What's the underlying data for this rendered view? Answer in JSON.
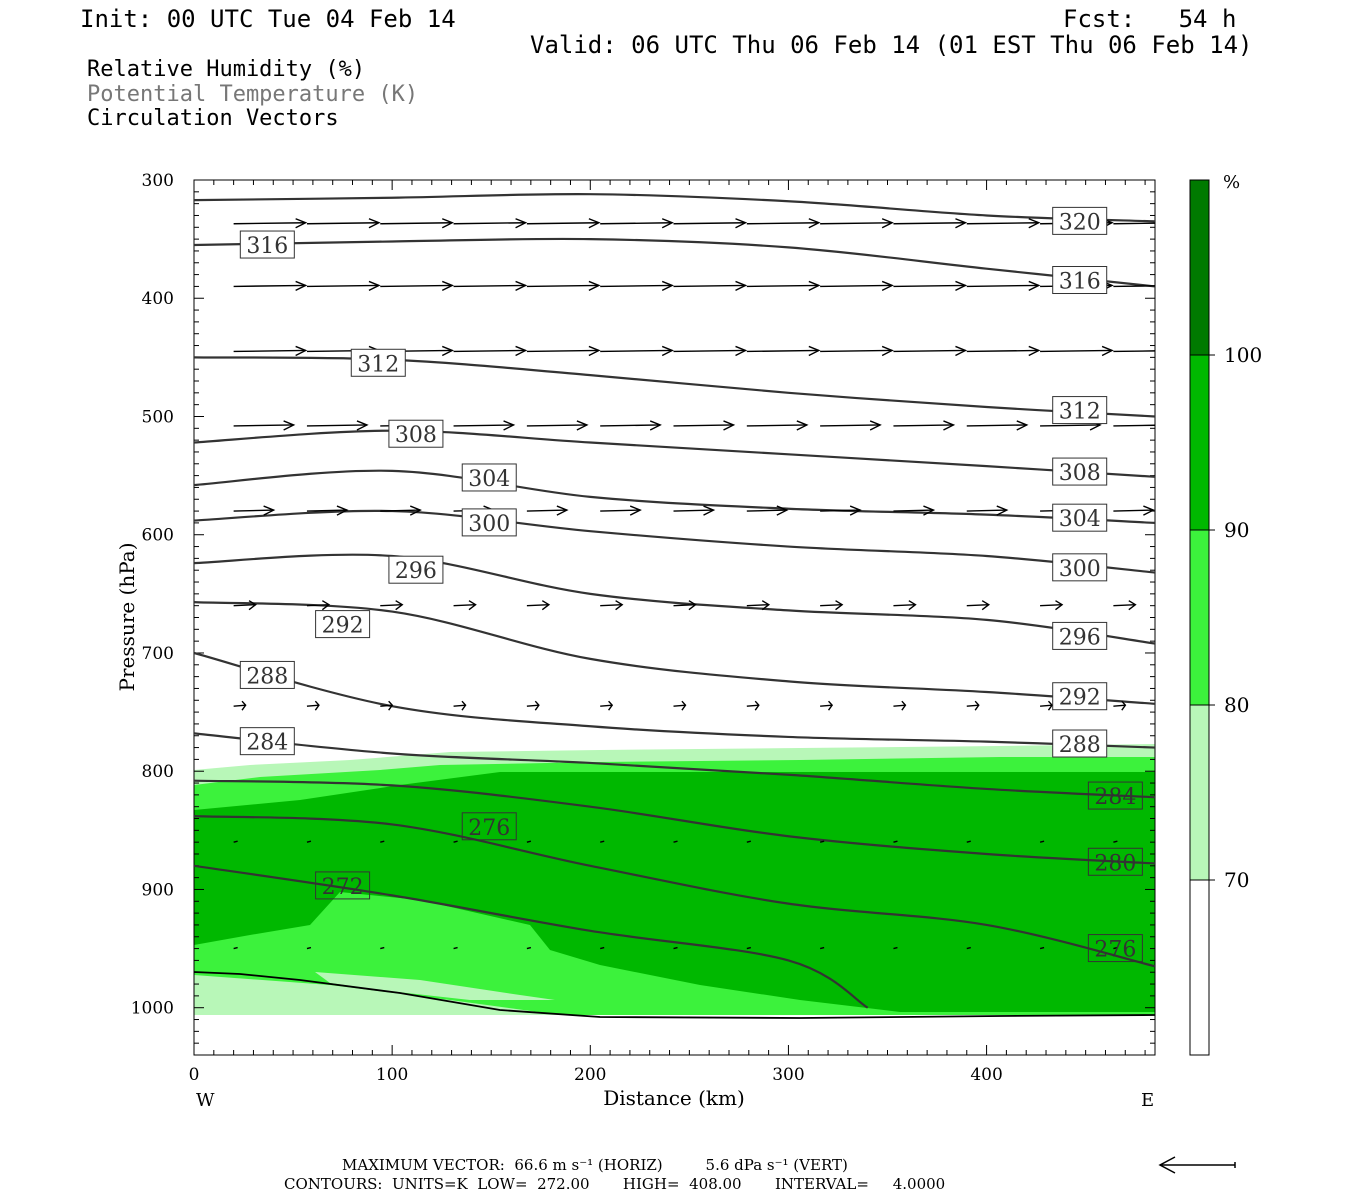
{
  "header": {
    "init": "Init: 00 UTC Tue 04 Feb 14",
    "fcst": "Fcst:   54 h",
    "valid": "Valid: 06 UTC Thu 06 Feb 14 (01 EST Thu 06 Feb 14)"
  },
  "fields": {
    "rh": "Relative Humidity (%)",
    "theta": "Potential Temperature (K)",
    "vectors": "Circulation Vectors"
  },
  "footer": {
    "max_vector": "MAXIMUM VECTOR:  66.6 m s⁻¹ (HORIZ)         5.6 dPa s⁻¹ (VERT)",
    "contours": "CONTOURS:  UNITS=K  LOW=  272.00       HIGH=  408.00       INTERVAL=     4.0000"
  },
  "colors": {
    "rh_70_80": "#b8f7b8",
    "rh_80_90": "#3cf23c",
    "rh_90_100": "#00b800",
    "rh_100": "#007a00",
    "contour": "#333333"
  },
  "chart_data": {
    "type": "cross-section",
    "xlabel": "Distance (km)",
    "ylabel": "Pressure (hPa)",
    "xlim": [
      0,
      485
    ],
    "ylim": [
      1040,
      300
    ],
    "x_ticks": [
      0,
      100,
      200,
      300,
      400
    ],
    "y_ticks": [
      300,
      400,
      500,
      600,
      700,
      800,
      900,
      1000
    ],
    "x_end_labels": {
      "left": "W",
      "right": "E"
    },
    "colorbar": {
      "unit": "%",
      "levels": [
        70,
        80,
        90,
        100
      ]
    },
    "theta_contours": [
      {
        "level": 320,
        "label": "320",
        "x": [
          0,
          100,
          200,
          300,
          400,
          485
        ],
        "p": [
          317,
          315,
          312,
          318,
          330,
          335
        ]
      },
      {
        "level": 316,
        "label": "316",
        "x": [
          0,
          100,
          200,
          300,
          400,
          485
        ],
        "p": [
          355,
          352,
          350,
          357,
          375,
          390
        ]
      },
      {
        "level": 312,
        "label": "312",
        "x": [
          0,
          100,
          200,
          300,
          400,
          485
        ],
        "p": [
          450,
          452,
          465,
          480,
          492,
          500
        ]
      },
      {
        "level": 308,
        "label": "308",
        "x": [
          0,
          100,
          200,
          300,
          400,
          485
        ],
        "p": [
          522,
          512,
          522,
          532,
          542,
          551
        ]
      },
      {
        "level": 304,
        "label": "304",
        "x": [
          0,
          100,
          200,
          300,
          400,
          485
        ],
        "p": [
          558,
          546,
          568,
          578,
          583,
          590
        ]
      },
      {
        "level": 300,
        "label": "300",
        "x": [
          0,
          100,
          200,
          300,
          400,
          485
        ],
        "p": [
          588,
          580,
          597,
          610,
          618,
          632
        ]
      },
      {
        "level": 296,
        "label": "296",
        "x": [
          0,
          100,
          200,
          300,
          400,
          485
        ],
        "p": [
          624,
          618,
          650,
          664,
          672,
          692
        ]
      },
      {
        "level": 292,
        "label": "292",
        "x": [
          0,
          100,
          200,
          300,
          400,
          485
        ],
        "p": [
          657,
          665,
          705,
          724,
          733,
          743
        ]
      },
      {
        "level": 288,
        "label": "288",
        "x": [
          0,
          100,
          200,
          300,
          400,
          485
        ],
        "p": [
          700,
          745,
          762,
          771,
          775,
          780
        ]
      },
      {
        "level": 284,
        "label": "284",
        "x": [
          0,
          100,
          200,
          300,
          400,
          485
        ],
        "p": [
          768,
          785,
          793,
          803,
          815,
          822
        ]
      },
      {
        "level": 280,
        "label": "280",
        "x": [
          0,
          100,
          200,
          300,
          400,
          485
        ],
        "p": [
          808,
          812,
          830,
          855,
          870,
          878
        ]
      },
      {
        "level": 276,
        "label": "276",
        "x": [
          0,
          100,
          200,
          300,
          400,
          485
        ],
        "p": [
          838,
          845,
          880,
          912,
          930,
          965
        ]
      },
      {
        "level": 272,
        "label": "272",
        "x": [
          0,
          100,
          200,
          300,
          340
        ],
        "p": [
          880,
          905,
          935,
          960,
          1000
        ]
      }
    ],
    "labels": [
      {
        "text": "320",
        "x": 447,
        "p": 335
      },
      {
        "text": "316",
        "x": 37,
        "p": 355
      },
      {
        "text": "316",
        "x": 447,
        "p": 385
      },
      {
        "text": "312",
        "x": 93,
        "p": 455
      },
      {
        "text": "312",
        "x": 447,
        "p": 495
      },
      {
        "text": "308",
        "x": 112,
        "p": 515
      },
      {
        "text": "308",
        "x": 447,
        "p": 547
      },
      {
        "text": "304",
        "x": 149,
        "p": 552
      },
      {
        "text": "304",
        "x": 447,
        "p": 586
      },
      {
        "text": "300",
        "x": 149,
        "p": 590
      },
      {
        "text": "300",
        "x": 447,
        "p": 628
      },
      {
        "text": "296",
        "x": 112,
        "p": 630
      },
      {
        "text": "296",
        "x": 447,
        "p": 686
      },
      {
        "text": "292",
        "x": 75,
        "p": 676
      },
      {
        "text": "292",
        "x": 447,
        "p": 737
      },
      {
        "text": "288",
        "x": 37,
        "p": 719
      },
      {
        "text": "288",
        "x": 447,
        "p": 777
      },
      {
        "text": "284",
        "x": 37,
        "p": 775
      },
      {
        "text": "284",
        "x": 465,
        "p": 821
      },
      {
        "text": "280",
        "x": 465,
        "p": 877
      },
      {
        "text": "276",
        "x": 149,
        "p": 847
      },
      {
        "text": "276",
        "x": 465,
        "p": 950
      },
      {
        "text": "272",
        "x": 75,
        "p": 897
      }
    ],
    "vector_rows": [
      {
        "p": 337,
        "u": 36
      },
      {
        "p": 390,
        "u": 36
      },
      {
        "p": 445,
        "u": 36
      },
      {
        "p": 508,
        "u": 30
      },
      {
        "p": 580,
        "u": 20
      },
      {
        "p": 660,
        "u": 11
      },
      {
        "p": 745,
        "u": 6
      },
      {
        "p": 860,
        "u": 2
      },
      {
        "p": 950,
        "u": 2
      }
    ],
    "max_vector_arrow": "left"
  }
}
